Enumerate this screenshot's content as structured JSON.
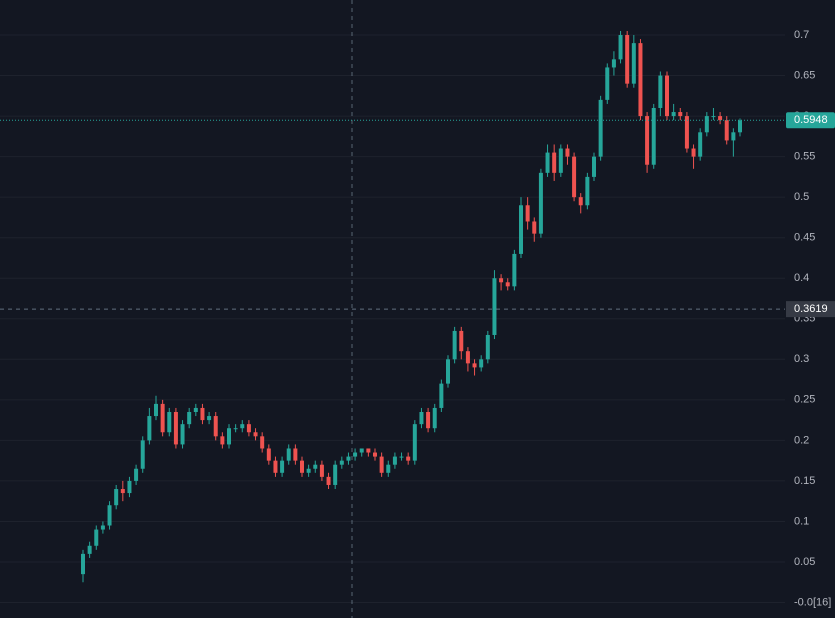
{
  "chart_data": {
    "type": "candlestick",
    "open": [
      0.035,
      0.06,
      0.07,
      0.09,
      0.095,
      0.12,
      0.14,
      0.135,
      0.15,
      0.165,
      0.2,
      0.23,
      0.245,
      0.21,
      0.235,
      0.195,
      0.22,
      0.235,
      0.24,
      0.225,
      0.23,
      0.205,
      0.195,
      0.215,
      0.215,
      0.22,
      0.21,
      0.205,
      0.19,
      0.175,
      0.16,
      0.175,
      0.19,
      0.175,
      0.16,
      0.165,
      0.17,
      0.155,
      0.145,
      0.17,
      0.175,
      0.18,
      0.185,
      0.19,
      0.185,
      0.18,
      0.16,
      0.17,
      0.18,
      0.18,
      0.175,
      0.22,
      0.235,
      0.215,
      0.24,
      0.27,
      0.3,
      0.335,
      0.31,
      0.295,
      0.29,
      0.3,
      0.33,
      0.4,
      0.395,
      0.39,
      0.43,
      0.49,
      0.47,
      0.455,
      0.53,
      0.555,
      0.53,
      0.56,
      0.55,
      0.5,
      0.49,
      0.525,
      0.55,
      0.62,
      0.66,
      0.67,
      0.7,
      0.64,
      0.69,
      0.6,
      0.54,
      0.61,
      0.65,
      0.6,
      0.605,
      0.6,
      0.56,
      0.55,
      0.58,
      0.6,
      0.6,
      0.595,
      0.57,
      0.58
    ],
    "high": [
      0.065,
      0.075,
      0.095,
      0.1,
      0.125,
      0.145,
      0.15,
      0.155,
      0.17,
      0.205,
      0.24,
      0.255,
      0.25,
      0.24,
      0.24,
      0.225,
      0.24,
      0.245,
      0.245,
      0.235,
      0.235,
      0.21,
      0.22,
      0.22,
      0.225,
      0.225,
      0.215,
      0.21,
      0.195,
      0.18,
      0.18,
      0.195,
      0.195,
      0.18,
      0.17,
      0.175,
      0.175,
      0.16,
      0.175,
      0.18,
      0.185,
      0.19,
      0.19,
      0.19,
      0.19,
      0.185,
      0.175,
      0.185,
      0.185,
      0.185,
      0.225,
      0.24,
      0.24,
      0.245,
      0.275,
      0.305,
      0.34,
      0.34,
      0.315,
      0.3,
      0.305,
      0.335,
      0.41,
      0.405,
      0.4,
      0.435,
      0.5,
      0.5,
      0.475,
      0.535,
      0.565,
      0.565,
      0.565,
      0.565,
      0.555,
      0.505,
      0.53,
      0.555,
      0.625,
      0.665,
      0.68,
      0.705,
      0.705,
      0.7,
      0.695,
      0.605,
      0.615,
      0.655,
      0.655,
      0.615,
      0.61,
      0.605,
      0.565,
      0.585,
      0.605,
      0.61,
      0.605,
      0.6,
      0.585,
      0.597
    ],
    "low": [
      0.025,
      0.055,
      0.065,
      0.085,
      0.09,
      0.115,
      0.125,
      0.13,
      0.145,
      0.16,
      0.195,
      0.225,
      0.205,
      0.205,
      0.19,
      0.19,
      0.215,
      0.23,
      0.22,
      0.22,
      0.2,
      0.19,
      0.19,
      0.21,
      0.21,
      0.205,
      0.2,
      0.185,
      0.17,
      0.155,
      0.155,
      0.17,
      0.17,
      0.155,
      0.155,
      0.16,
      0.15,
      0.14,
      0.14,
      0.165,
      0.17,
      0.175,
      0.18,
      0.18,
      0.175,
      0.155,
      0.155,
      0.165,
      0.175,
      0.17,
      0.17,
      0.215,
      0.21,
      0.21,
      0.235,
      0.265,
      0.295,
      0.3,
      0.285,
      0.28,
      0.285,
      0.295,
      0.325,
      0.385,
      0.385,
      0.385,
      0.425,
      0.46,
      0.445,
      0.45,
      0.525,
      0.52,
      0.525,
      0.54,
      0.495,
      0.48,
      0.485,
      0.52,
      0.545,
      0.615,
      0.65,
      0.665,
      0.635,
      0.635,
      0.595,
      0.53,
      0.535,
      0.6,
      0.595,
      0.595,
      0.595,
      0.555,
      0.535,
      0.545,
      0.575,
      0.595,
      0.59,
      0.565,
      0.55,
      0.575
    ],
    "close": [
      0.06,
      0.07,
      0.09,
      0.095,
      0.12,
      0.14,
      0.135,
      0.15,
      0.165,
      0.2,
      0.23,
      0.245,
      0.21,
      0.235,
      0.195,
      0.22,
      0.235,
      0.24,
      0.225,
      0.23,
      0.205,
      0.195,
      0.215,
      0.215,
      0.22,
      0.21,
      0.205,
      0.19,
      0.175,
      0.16,
      0.175,
      0.19,
      0.175,
      0.16,
      0.165,
      0.17,
      0.155,
      0.145,
      0.17,
      0.175,
      0.18,
      0.185,
      0.19,
      0.185,
      0.18,
      0.16,
      0.17,
      0.18,
      0.18,
      0.175,
      0.22,
      0.235,
      0.215,
      0.24,
      0.27,
      0.3,
      0.335,
      0.31,
      0.295,
      0.29,
      0.3,
      0.33,
      0.4,
      0.395,
      0.39,
      0.43,
      0.49,
      0.47,
      0.455,
      0.53,
      0.555,
      0.53,
      0.56,
      0.55,
      0.5,
      0.49,
      0.525,
      0.55,
      0.62,
      0.66,
      0.67,
      0.7,
      0.64,
      0.69,
      0.6,
      0.54,
      0.61,
      0.65,
      0.6,
      0.605,
      0.6,
      0.56,
      0.55,
      0.58,
      0.6,
      0.6,
      0.595,
      0.57,
      0.58,
      0.5948
    ],
    "up_color": "#26a69a",
    "down_color": "#ef5350",
    "ylim": [
      -0.0191,
      0.7432
    ],
    "yticks": [
      {
        "value": 0,
        "label": "-0.0[16]"
      },
      0.05,
      0.1,
      0.15,
      0.2,
      0.25,
      0.3,
      0.35,
      0.4,
      0.45,
      0.5,
      0.55,
      0.6,
      0.65,
      0.7
    ],
    "grid": true,
    "last_price": 0.5948,
    "crosshair_price": 0.3619
  }
}
